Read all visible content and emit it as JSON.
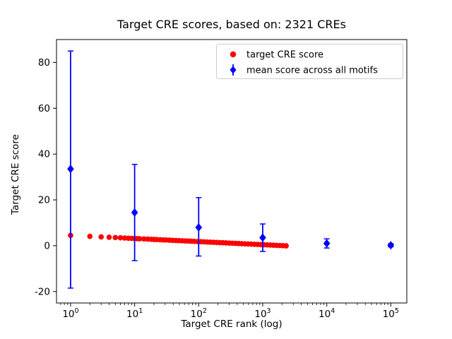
{
  "chart_data": {
    "type": "scatter",
    "title": "Target CRE scores, based on: 2321 CREs",
    "xlabel": "Target CRE rank (log)",
    "ylabel": "Target CRE score",
    "x_scale": "log",
    "x_log_range": [
      -0.22,
      5.25
    ],
    "ylim": [
      -25,
      90
    ],
    "x_tick_exponents": [
      0,
      1,
      2,
      3,
      4,
      5
    ],
    "y_ticks": [
      -20,
      0,
      20,
      40,
      60,
      80
    ],
    "grid": false,
    "legend": {
      "position": "upper right"
    },
    "series": [
      {
        "name": "target CRE score",
        "marker": "circle",
        "color": "#ff0000",
        "x": [
          1,
          2,
          3,
          4,
          5,
          6,
          7,
          8,
          9,
          10,
          11,
          12,
          14,
          16,
          18,
          20,
          22,
          25,
          28,
          31,
          35,
          39,
          44,
          49,
          55,
          62,
          69,
          77,
          86,
          97,
          108,
          121,
          136,
          152,
          170,
          191,
          214,
          239,
          268,
          300,
          336,
          376,
          421,
          472,
          529,
          592,
          663,
          743,
          832,
          932,
          1044,
          1169,
          1309,
          1466,
          1642,
          1839,
          2060,
          2307,
          2321
        ],
        "y": [
          4.5,
          4.09,
          3.86,
          3.69,
          3.56,
          3.45,
          3.36,
          3.28,
          3.21,
          3.15,
          3.09,
          3.04,
          2.95,
          2.87,
          2.81,
          2.74,
          2.69,
          2.61,
          2.55,
          2.49,
          2.42,
          2.35,
          2.28,
          2.22,
          2.15,
          2.08,
          2.02,
          1.95,
          1.89,
          1.82,
          1.76,
          1.69,
          1.62,
          1.55,
          1.49,
          1.42,
          1.35,
          1.29,
          1.22,
          1.16,
          1.09,
          1.02,
          0.96,
          0.89,
          0.82,
          0.76,
          0.69,
          0.62,
          0.56,
          0.49,
          0.42,
          0.36,
          0.29,
          0.23,
          0.16,
          0.09,
          0.03,
          -0.03,
          -0.04
        ]
      },
      {
        "name": "mean score across all motifs",
        "marker": "diamond",
        "color": "#0000ff",
        "x": [
          1,
          10,
          100,
          1000,
          10000,
          100000
        ],
        "y": [
          33.5,
          14.5,
          8.0,
          3.5,
          1.0,
          0.2
        ],
        "yerr_low": [
          52.0,
          21.0,
          12.5,
          6.0,
          2.0,
          0.7
        ],
        "yerr_high": [
          51.5,
          21.0,
          13.0,
          6.0,
          2.0,
          0.7
        ]
      }
    ]
  }
}
